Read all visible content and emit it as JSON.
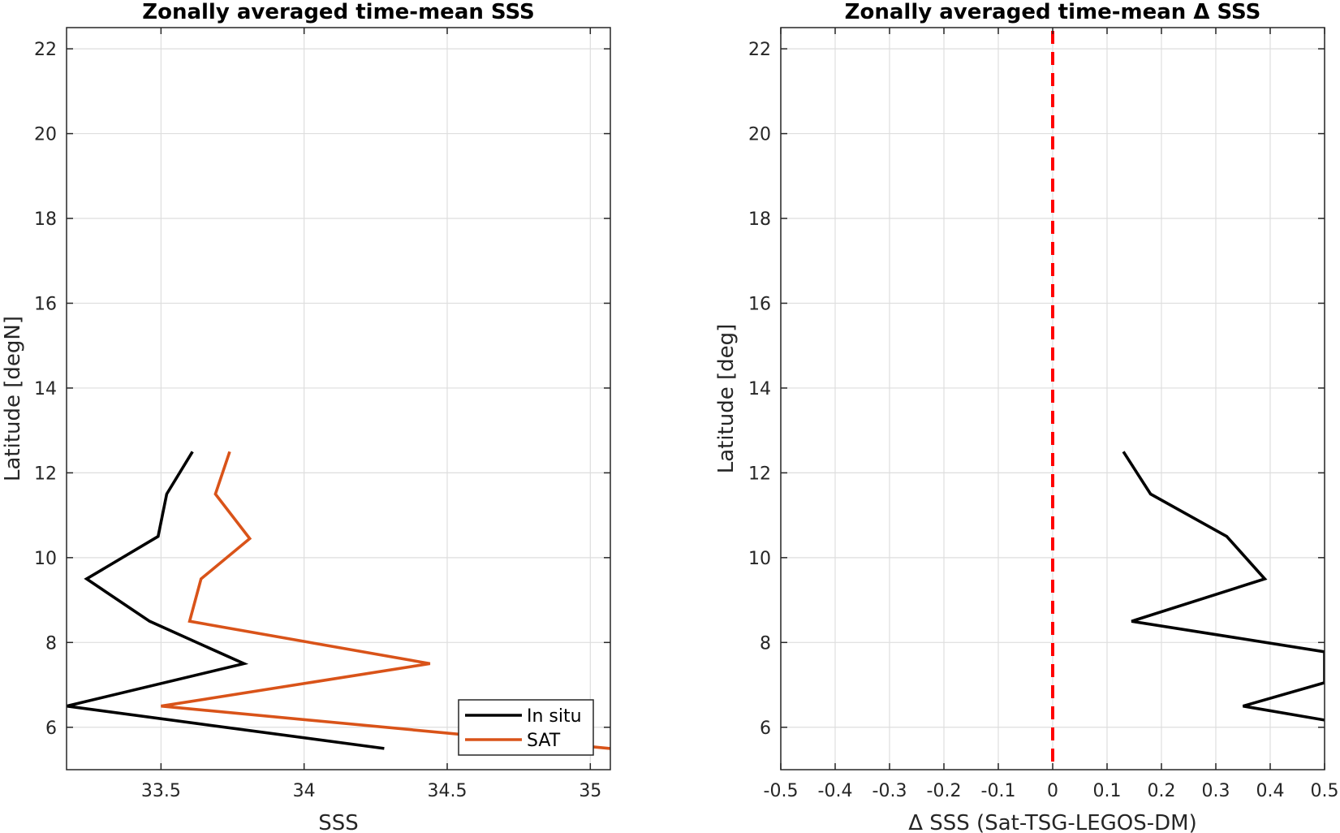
{
  "chart_data": [
    {
      "type": "line",
      "title": "Zonally averaged time-mean SSS",
      "xlabel": "SSS",
      "ylabel": "Latitude [degN]",
      "xlim": [
        33.17,
        35.07
      ],
      "ylim": [
        5,
        22.5
      ],
      "xticks": [
        33.5,
        34,
        34.5,
        35
      ],
      "xtick_labels": [
        "33.5",
        "34",
        "34.5",
        "35"
      ],
      "yticks": [
        6,
        8,
        10,
        12,
        14,
        16,
        18,
        20,
        22
      ],
      "ytick_labels": [
        "6",
        "8",
        "10",
        "12",
        "14",
        "16",
        "18",
        "20",
        "22"
      ],
      "grid": true,
      "legend_position": "bottom-right",
      "series": [
        {
          "name": "In situ",
          "color": "#000000",
          "points": [
            [
              33.61,
              12.5
            ],
            [
              33.52,
              11.5
            ],
            [
              33.49,
              10.5
            ],
            [
              33.24,
              9.5
            ],
            [
              33.46,
              8.5
            ],
            [
              33.79,
              7.5
            ],
            [
              33.17,
              6.5
            ],
            [
              34.28,
              5.5
            ]
          ]
        },
        {
          "name": "SAT",
          "color": "#d95319",
          "points": [
            [
              33.74,
              12.5
            ],
            [
              33.69,
              11.5
            ],
            [
              33.81,
              10.45
            ],
            [
              33.64,
              9.5
            ],
            [
              33.6,
              8.5
            ],
            [
              34.44,
              7.5
            ],
            [
              33.5,
              6.5
            ],
            [
              35.07,
              5.5
            ]
          ]
        }
      ]
    },
    {
      "type": "line",
      "title": "Zonally averaged time-mean Δ SSS",
      "xlabel": "Δ SSS (Sat-TSG-LEGOS-DM)",
      "ylabel": "Latitude [deg]",
      "xlim": [
        -0.5,
        0.5
      ],
      "ylim": [
        5,
        22.5
      ],
      "xticks": [
        -0.5,
        -0.4,
        -0.3,
        -0.2,
        -0.1,
        0,
        0.1,
        0.2,
        0.3,
        0.4,
        0.5
      ],
      "xtick_labels": [
        "-0.5",
        "-0.4",
        "-0.3",
        "-0.2",
        "-0.1",
        "0",
        "0.1",
        "0.2",
        "0.3",
        "0.4",
        "0.5"
      ],
      "yticks": [
        6,
        8,
        10,
        12,
        14,
        16,
        18,
        20,
        22
      ],
      "ytick_labels": [
        "6",
        "8",
        "10",
        "12",
        "14",
        "16",
        "18",
        "20",
        "22"
      ],
      "grid": true,
      "reference_line": {
        "x": 0,
        "color": "#ff0000",
        "style": "dashed"
      },
      "series": [
        {
          "color": "#000000",
          "points": [
            [
              0.13,
              12.5
            ],
            [
              0.18,
              11.5
            ],
            [
              0.32,
              10.5
            ],
            [
              0.39,
              9.5
            ],
            [
              0.145,
              8.5
            ],
            [
              0.5,
              7.78
            ],
            [
              0.5,
              7.05
            ],
            [
              0.35,
              6.5
            ],
            [
              0.5,
              6.17
            ]
          ]
        }
      ]
    }
  ]
}
